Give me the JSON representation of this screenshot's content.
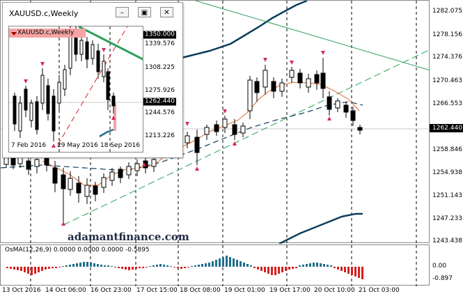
{
  "main_chart": {
    "price_labels": [
      {
        "text": "1282.075"
      },
      {
        "text": "1278.156"
      },
      {
        "text": "1274.376"
      },
      {
        "text": "1270.463"
      },
      {
        "text": "1266.553"
      },
      {
        "text": "1258.846"
      },
      {
        "text": "1254.938"
      },
      {
        "text": "1251.143"
      },
      {
        "text": "1247.233"
      },
      {
        "text": "1243.438"
      }
    ],
    "current_price": "1262.440",
    "time_labels": [
      "13 Oct 2016",
      "14 Oct 06:00",
      "16 Oct 23:00",
      "17 Oct 15:00",
      "18 Oct 08:00",
      "19 Oct 01:00",
      "19 Oct 17:00",
      "20 Oct 10:00",
      "21 Oct 03:00"
    ],
    "watermark": "adamantfinance.com"
  },
  "oscillator": {
    "label": "OsMA(12,26,9) 0.0000 0.0000 0.0000 -0.5895",
    "axis_labels": [
      "0.00",
      "-0.897"
    ],
    "colors": {
      "positive": "#1f6f8b",
      "negative": "#d42020"
    }
  },
  "mini_window": {
    "title": "XAUUSD.c,Weekly",
    "symbol_label": "XAUUSD.c,Weekly",
    "buttons": {
      "minimize": "–",
      "restore": "▣",
      "close": "✕"
    },
    "price_labels": [
      {
        "text": "1350.000",
        "boxed": true
      },
      {
        "text": "1339.576",
        "boxed": false
      },
      {
        "text": "1308.225",
        "boxed": false
      },
      {
        "text": "1275.926",
        "boxed": false
      },
      {
        "text": "1262.440",
        "boxed": true
      },
      {
        "text": "1244.576",
        "boxed": false
      },
      {
        "text": "1213.226",
        "boxed": false
      }
    ],
    "time_labels": [
      "7 Feb 2016",
      "29 May 2016",
      "18 Sep 2016"
    ]
  },
  "colors": {
    "bull_candle": "#000000",
    "bear_candle": "#000000",
    "ma_fast": "#e06a2a",
    "ma_slow": "#0b3d5c",
    "band": "#0b3d5c",
    "trend_green": "#2aa05a",
    "fractal": "#d42a5a"
  }
}
